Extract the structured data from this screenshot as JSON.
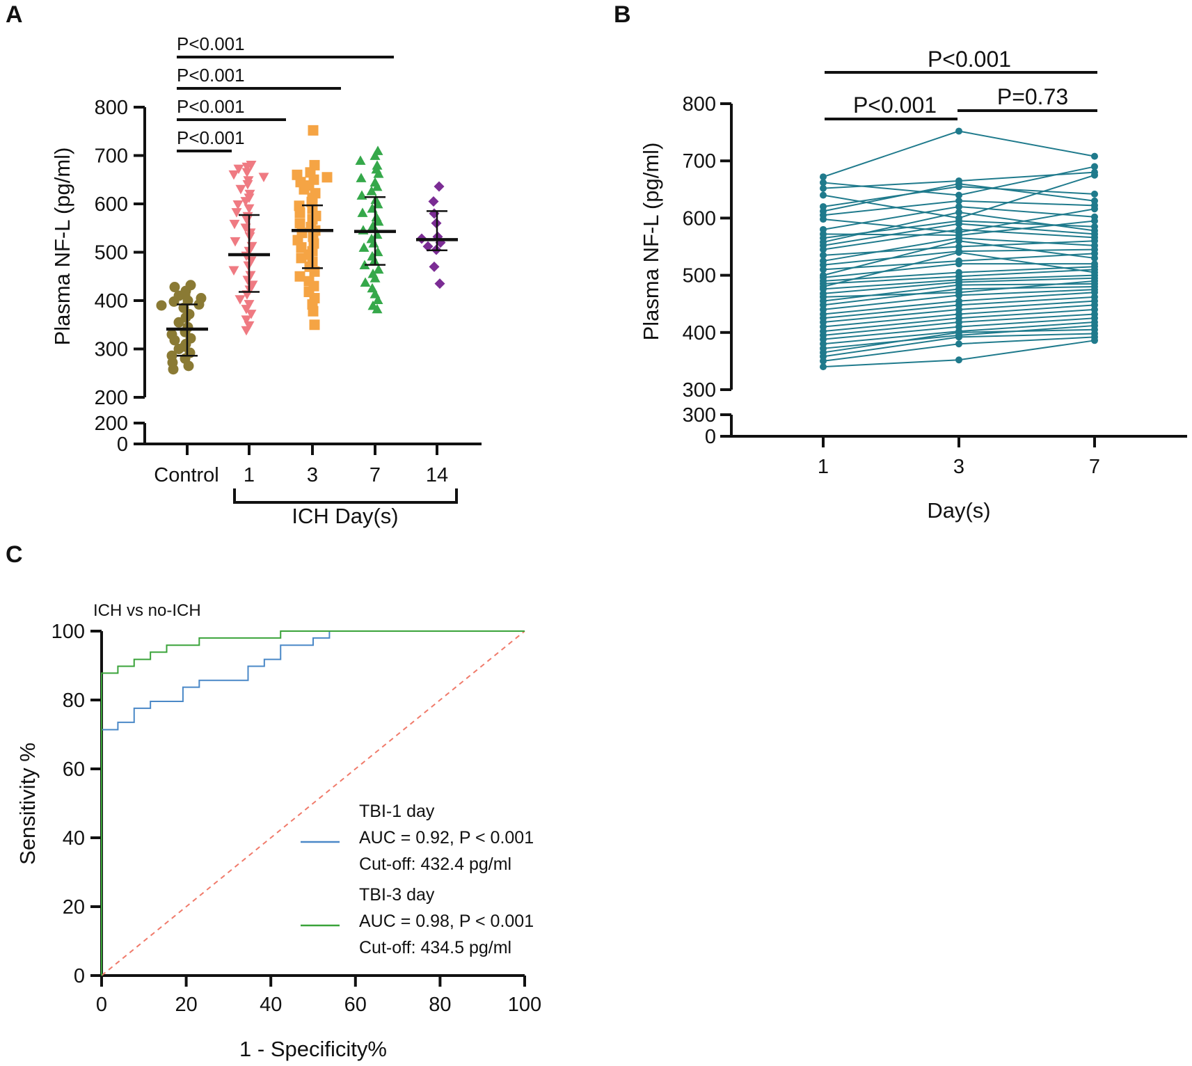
{
  "figure": {
    "panel_labels": [
      "A",
      "B",
      "C"
    ]
  },
  "chart_data": [
    {
      "id": "A",
      "type": "scatter",
      "title": "",
      "xlabel": "ICH Day(s)",
      "ylabel": "Plasma NF-L (pg/ml)",
      "ylim": [
        0,
        800
      ],
      "y_break": [
        200,
        200
      ],
      "yticks_upper": [
        200,
        300,
        400,
        500,
        600,
        700,
        800
      ],
      "yticks_lower": [
        0,
        200
      ],
      "categories": [
        "Control",
        "1",
        "3",
        "7",
        "14"
      ],
      "colors": [
        "#8a7a34",
        "#ef7a82",
        "#f5a444",
        "#35a84a",
        "#7b2c94"
      ],
      "markers": [
        "circle",
        "triangle-down",
        "square",
        "triangle-up",
        "diamond"
      ],
      "groups": [
        {
          "name": "Control",
          "mean": 341,
          "sd_low": 286,
          "sd_high": 392,
          "values": [
            432,
            428,
            420,
            412,
            410,
            405,
            400,
            398,
            392,
            390,
            385,
            372,
            365,
            355,
            345,
            335,
            330,
            322,
            318,
            310,
            305,
            300,
            292,
            286,
            280,
            272,
            265,
            258
          ]
        },
        {
          "name": "1",
          "mean": 495,
          "sd_low": 418,
          "sd_high": 577,
          "values": [
            680,
            676,
            672,
            665,
            660,
            655,
            648,
            640,
            630,
            620,
            612,
            605,
            598,
            590,
            582,
            574,
            566,
            558,
            550,
            540,
            532,
            522,
            512,
            502,
            492,
            482,
            472,
            462,
            452,
            442,
            432,
            422,
            412,
            402,
            392,
            382,
            372,
            360,
            348,
            338
          ]
        },
        {
          "name": "3",
          "mean": 545,
          "sd_low": 467,
          "sd_high": 597,
          "values": [
            752,
            680,
            665,
            660,
            655,
            650,
            645,
            638,
            630,
            622,
            612,
            604,
            596,
            590,
            582,
            575,
            568,
            560,
            552,
            545,
            540,
            532,
            525,
            518,
            510,
            502,
            495,
            488,
            480,
            470,
            460,
            450,
            440,
            430,
            418,
            405,
            392,
            378,
            350
          ]
        },
        {
          "name": "7",
          "mean": 543,
          "sd_low": 474,
          "sd_high": 614,
          "values": [
            710,
            700,
            690,
            680,
            672,
            663,
            654,
            645,
            636,
            627,
            618,
            609,
            600,
            591,
            582,
            573,
            564,
            555,
            546,
            537,
            528,
            519,
            510,
            501,
            492,
            483,
            474,
            465,
            456,
            447,
            438,
            426,
            414,
            402,
            390,
            383
          ]
        },
        {
          "name": "14",
          "mean": 526,
          "sd_low": 504,
          "sd_high": 585,
          "values": [
            636,
            605,
            580,
            560,
            532,
            528,
            520,
            512,
            505,
            470,
            435
          ]
        }
      ],
      "bracket_label": "ICH Day(s)",
      "significance": [
        {
          "from": "Control",
          "to": "1",
          "label": "P<0.001"
        },
        {
          "from": "Control",
          "to": "3",
          "label": "P<0.001"
        },
        {
          "from": "Control",
          "to": "7",
          "label": "P<0.001"
        },
        {
          "from": "Control",
          "to": "14",
          "label": "P<0.001"
        }
      ]
    },
    {
      "id": "B",
      "type": "line",
      "title": "",
      "xlabel": "Day(s)",
      "ylabel": "Plasma NF-L (pg/ml)",
      "ylim": [
        0,
        800
      ],
      "y_break": [
        300,
        300
      ],
      "yticks_upper": [
        300,
        400,
        500,
        600,
        700,
        800
      ],
      "yticks_lower": [
        0,
        300
      ],
      "categories": [
        "1",
        "3",
        "7"
      ],
      "color": "#1f7a8c",
      "series": [
        {
          "values": [
            672,
            752,
            708
          ]
        },
        {
          "values": [
            662,
            640,
            690
          ]
        },
        {
          "values": [
            652,
            665,
            680
          ]
        },
        {
          "values": [
            640,
            600,
            675
          ]
        },
        {
          "values": [
            620,
            655,
            642
          ]
        },
        {
          "values": [
            612,
            660,
            630
          ]
        },
        {
          "values": [
            605,
            630,
            622
          ]
        },
        {
          "values": [
            598,
            575,
            616
          ]
        },
        {
          "values": [
            580,
            620,
            602
          ]
        },
        {
          "values": [
            572,
            570,
            595
          ]
        },
        {
          "values": [
            565,
            595,
            585
          ]
        },
        {
          "values": [
            558,
            610,
            578
          ]
        },
        {
          "values": [
            552,
            590,
            572
          ]
        },
        {
          "values": [
            545,
            580,
            566
          ]
        },
        {
          "values": [
            535,
            550,
            560
          ]
        },
        {
          "values": [
            525,
            565,
            552
          ]
        },
        {
          "values": [
            518,
            542,
            545
          ]
        },
        {
          "values": [
            510,
            525,
            538
          ]
        },
        {
          "values": [
            500,
            560,
            530
          ]
        },
        {
          "values": [
            496,
            520,
            520
          ]
        },
        {
          "values": [
            490,
            505,
            515
          ]
        },
        {
          "values": [
            485,
            498,
            510
          ]
        },
        {
          "values": [
            480,
            540,
            505
          ]
        },
        {
          "values": [
            476,
            492,
            500
          ]
        },
        {
          "values": [
            468,
            488,
            495
          ]
        },
        {
          "values": [
            462,
            470,
            490
          ]
        },
        {
          "values": [
            455,
            483,
            485
          ]
        },
        {
          "values": [
            448,
            476,
            480
          ]
        },
        {
          "values": [
            440,
            465,
            475
          ]
        },
        {
          "values": [
            432,
            455,
            470
          ]
        },
        {
          "values": [
            425,
            448,
            462
          ]
        },
        {
          "values": [
            418,
            440,
            455
          ]
        },
        {
          "values": [
            410,
            432,
            448
          ]
        },
        {
          "values": [
            402,
            425,
            440
          ]
        },
        {
          "values": [
            395,
            418,
            432
          ]
        },
        {
          "values": [
            388,
            410,
            425
          ]
        },
        {
          "values": [
            380,
            402,
            418
          ]
        },
        {
          "values": [
            372,
            395,
            412
          ]
        },
        {
          "values": [
            365,
            400,
            405
          ]
        },
        {
          "values": [
            358,
            392,
            398
          ]
        },
        {
          "values": [
            350,
            380,
            392
          ]
        },
        {
          "values": [
            340,
            352,
            386
          ]
        }
      ],
      "significance": [
        {
          "from": "1",
          "to": "3",
          "label": "P<0.001"
        },
        {
          "from": "3",
          "to": "7",
          "label": "P=0.73"
        },
        {
          "from": "1",
          "to": "7",
          "label": "P<0.001"
        }
      ]
    },
    {
      "id": "C",
      "type": "line",
      "title": "ICH vs no-ICH",
      "xlabel": "1 - Specificity%",
      "ylabel": "Sensitivity %",
      "xlim": [
        0,
        100
      ],
      "ylim": [
        0,
        100
      ],
      "xticks": [
        0,
        20,
        40,
        60,
        80,
        100
      ],
      "yticks": [
        0,
        20,
        40,
        60,
        80,
        100
      ],
      "series": [
        {
          "name": "TBI-1 day",
          "color": "#4a88c7",
          "auc_text": "AUC = 0.92, P < 0.001",
          "cutoff_text": "Cut-off: 432.4 pg/ml",
          "x": [
            0,
            0,
            3.85,
            3.85,
            7.69,
            7.69,
            11.54,
            11.54,
            19.23,
            19.23,
            23.08,
            23.08,
            34.62,
            34.62,
            38.46,
            38.46,
            42.31,
            42.31,
            50,
            50,
            53.85,
            53.85,
            100
          ],
          "y": [
            0,
            71.4,
            71.4,
            73.5,
            73.5,
            77.6,
            77.6,
            79.6,
            79.6,
            83.7,
            83.7,
            85.7,
            85.7,
            89.8,
            89.8,
            91.8,
            91.8,
            95.9,
            95.9,
            98,
            98,
            100,
            100
          ]
        },
        {
          "name": "TBI-3 day",
          "color": "#3aa33a",
          "auc_text": "AUC = 0.98, P < 0.001",
          "cutoff_text": "Cut-off: 434.5 pg/ml",
          "x": [
            0,
            0,
            3.85,
            3.85,
            7.69,
            7.69,
            11.54,
            11.54,
            15.38,
            15.38,
            23.08,
            23.08,
            42.31,
            42.31,
            100
          ],
          "y": [
            0,
            87.8,
            87.8,
            89.8,
            89.8,
            91.8,
            91.8,
            93.9,
            93.9,
            95.9,
            95.9,
            98,
            98,
            100,
            100
          ]
        }
      ],
      "reference_line": {
        "x": [
          0,
          100
        ],
        "y": [
          0,
          100
        ],
        "color": "#f07a6a",
        "style": "dashed"
      },
      "legend_position": "bottom-right"
    }
  ]
}
